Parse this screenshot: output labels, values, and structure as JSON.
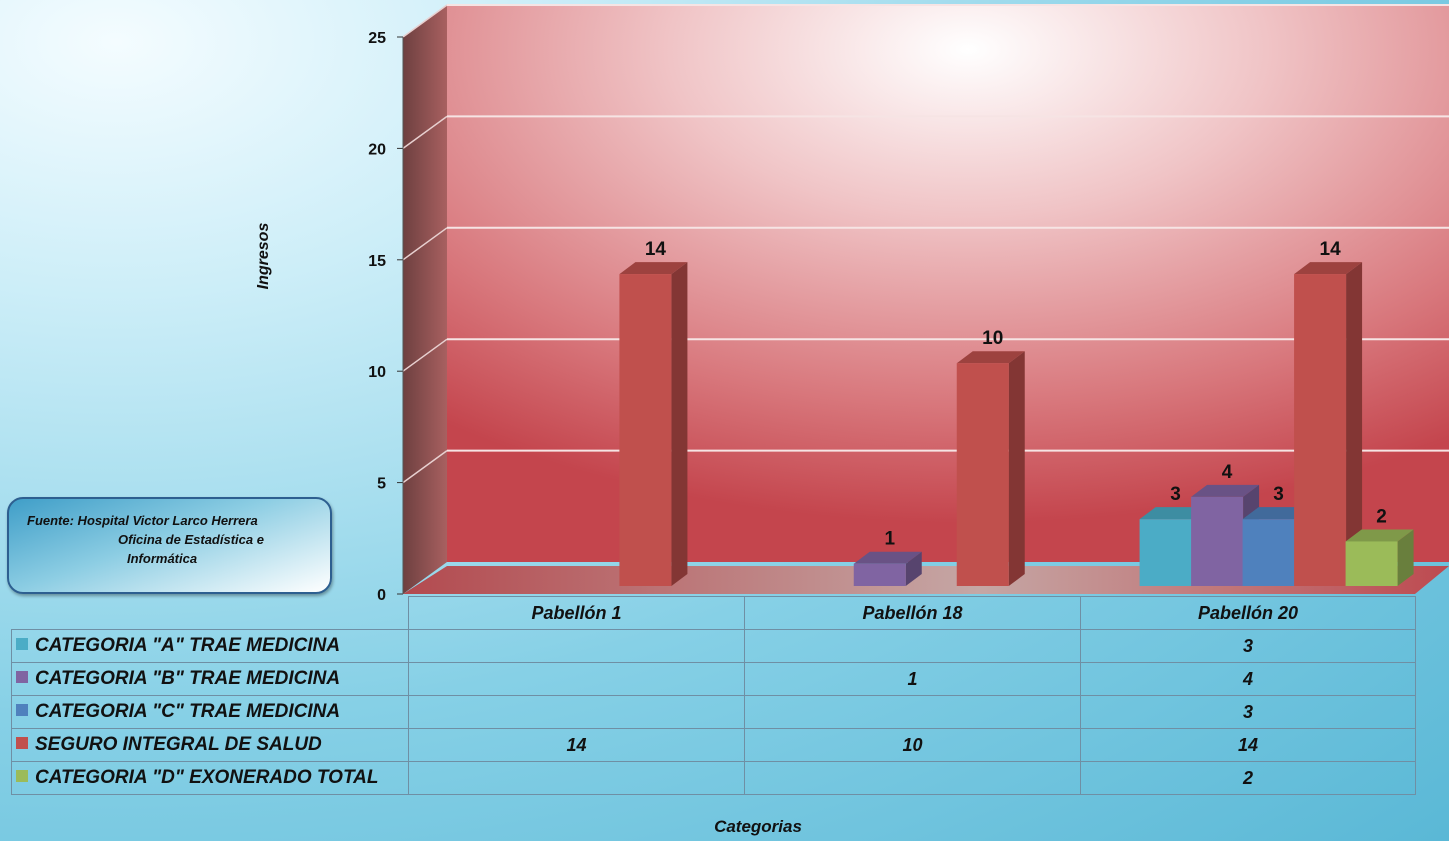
{
  "chart_data": {
    "type": "bar",
    "ylabel": "Ingresos",
    "xlabel": "Categorias",
    "ylim": [
      0,
      25
    ],
    "yticks": [
      "0",
      "5",
      "10",
      "15",
      "20",
      "25"
    ],
    "categories": [
      "Pabellón 1",
      "Pabellón 18",
      "Pabellón 20"
    ],
    "series": [
      {
        "name": "CATEGORIA \"A\" TRAE MEDICINA",
        "color": "#4bacc6",
        "values": [
          null,
          null,
          3
        ]
      },
      {
        "name": "CATEGORIA \"B\" TRAE MEDICINA",
        "color": "#8064a2",
        "values": [
          null,
          1,
          4
        ]
      },
      {
        "name": "CATEGORIA \"C\" TRAE MEDICINA",
        "color": "#4f81bd",
        "values": [
          null,
          null,
          3
        ]
      },
      {
        "name": "SEGURO INTEGRAL DE SALUD",
        "color": "#c0504d",
        "values": [
          14,
          10,
          14
        ]
      },
      {
        "name": "CATEGORIA \"D\" EXONERADO TOTAL",
        "color": "#9bbb59",
        "values": [
          null,
          null,
          2
        ]
      }
    ],
    "grid": true,
    "legend": "data-table-below"
  },
  "source": {
    "line1": "Fuente:  Hospital Victor Larco Herrera",
    "line2": "Oficina de Estadística e",
    "line3": "Informática"
  }
}
